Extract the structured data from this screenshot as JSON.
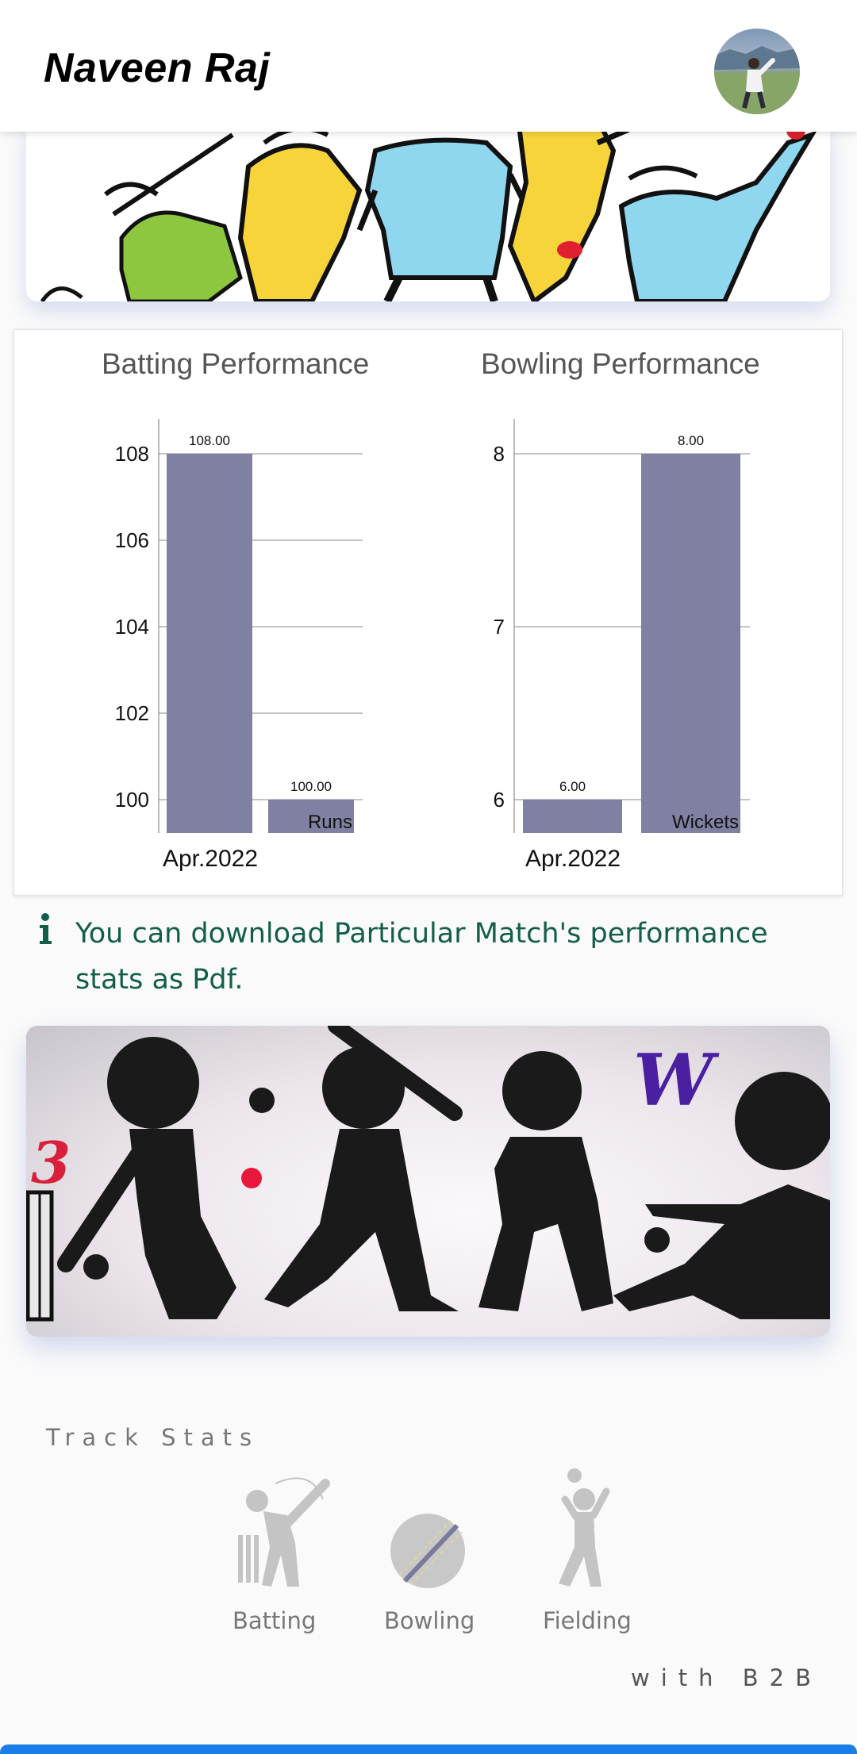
{
  "header": {
    "user_name": "Naveen Raj"
  },
  "charts": [
    {
      "title": "Batting Performance",
      "chart_data": {
        "type": "bar",
        "title": "Batting Performance",
        "categories": [
          "Apr.2022",
          "Runs"
        ],
        "values": [
          108.0,
          100.0
        ],
        "value_labels": [
          "108.00",
          "100.00"
        ],
        "y_ticks": [
          "100",
          "102",
          "104",
          "106",
          "108"
        ],
        "ylim": [
          100,
          108
        ],
        "x_label_text": "Apr.2022",
        "inner_label": "Runs",
        "grid": true,
        "bar_color": "#8080a3"
      }
    },
    {
      "title": "Bowling Performance",
      "chart_data": {
        "type": "bar",
        "title": "Bowling Performance",
        "categories": [
          "Apr.2022",
          "Wickets"
        ],
        "values": [
          6.0,
          8.0
        ],
        "value_labels": [
          "6.00",
          "8.00"
        ],
        "y_ticks": [
          "6",
          "7",
          "8"
        ],
        "ylim": [
          6,
          8
        ],
        "x_label_text": "Apr.2022",
        "inner_label": "Wickets",
        "grid": true,
        "bar_color": "#8080a3"
      }
    }
  ],
  "info": {
    "icon": "info-icon",
    "text": "You can download Particular Match's performance stats as Pdf.",
    "color": "#135e4b"
  },
  "track_stats": {
    "title": "Track Stats",
    "items": [
      {
        "label": "Batting",
        "icon": "batting-icon"
      },
      {
        "label": "Bowling",
        "icon": "bowling-icon"
      },
      {
        "label": "Fielding",
        "icon": "fielding-icon"
      }
    ],
    "footer": "with B2B"
  },
  "banner_sil": {
    "badge_number": "3",
    "badge_letter": "W"
  },
  "colors": {
    "bar": "#8080a3",
    "accent_blue": "#1a7fe8"
  }
}
